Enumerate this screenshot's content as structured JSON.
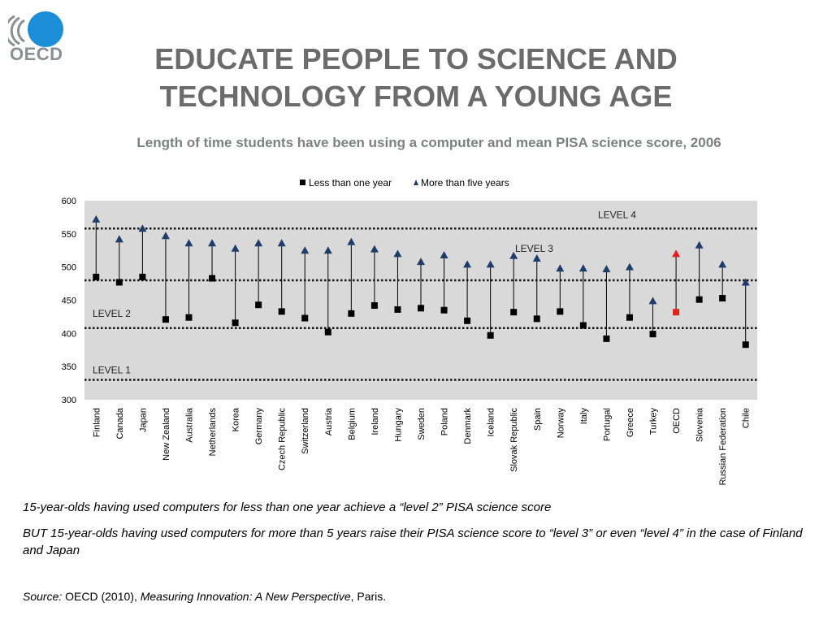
{
  "logo": {
    "text": "OECD",
    "color": "#1c8ed8"
  },
  "title_line1": "EDUCATE PEOPLE TO SCIENCE AND",
  "title_line2": "TECHNOLOGY FROM A YOUNG AGE",
  "subtitle": "Length of time students have been using a computer and mean PISA science score, 2006",
  "notes": {
    "line1": "15-year-olds having used computers for less than one year achieve a “level 2” PISA science score",
    "line2": "BUT 15-year-olds having used computers for more than 5 years raise their PISA  science score to “level 3” or even  “level 4” in the case of Finland and Japan"
  },
  "source": {
    "label": "Source:",
    "text1": " OECD (2010), ",
    "title": "Measuring Innovation: A New Perspective",
    "text2": ", Paris."
  },
  "chart_data": {
    "type": "scatter",
    "categories": [
      "Finland",
      "Canada",
      "Japan",
      "New Zealand",
      "Australia",
      "Netherlands",
      "Korea",
      "Germany",
      "Czech Republic",
      "Switzerland",
      "Austria",
      "Belgium",
      "Ireland",
      "Hungary",
      "Sweden",
      "Poland",
      "Denmark",
      "Iceland",
      "Slovak Republic",
      "Spain",
      "Norway",
      "Italy",
      "Portugal",
      "Greece",
      "Turkey",
      "OECD",
      "Slovenia",
      "Russian Federation",
      "Chile"
    ],
    "series": [
      {
        "name": "Less than one year",
        "marker": "square",
        "color": "#000000",
        "values": [
          485,
          477,
          485,
          421,
          424,
          483,
          416,
          443,
          433,
          423,
          402,
          430,
          442,
          436,
          438,
          435,
          419,
          397,
          432,
          422,
          433,
          412,
          392,
          424,
          399,
          432,
          451,
          453,
          383
        ]
      },
      {
        "name": "More than five years",
        "marker": "triangle",
        "color": "#1f3d6b",
        "values": [
          572,
          542,
          558,
          547,
          536,
          536,
          528,
          536,
          536,
          525,
          525,
          538,
          527,
          520,
          508,
          518,
          504,
          504,
          517,
          513,
          498,
          498,
          497,
          500,
          449,
          520,
          533,
          504,
          477
        ]
      }
    ],
    "highlight": {
      "category": "OECD",
      "color": "#e0201b"
    },
    "ylim": [
      300,
      600
    ],
    "yticks": [
      300,
      350,
      400,
      450,
      500,
      550,
      600
    ],
    "grid": false,
    "legend": "top-center",
    "level_lines": [
      {
        "label": "LEVEL 1",
        "value": 330
      },
      {
        "label": "LEVEL 2",
        "value": 408
      },
      {
        "label": "LEVEL 3",
        "value": 480
      },
      {
        "label": "LEVEL 4",
        "value": 558
      }
    ]
  }
}
